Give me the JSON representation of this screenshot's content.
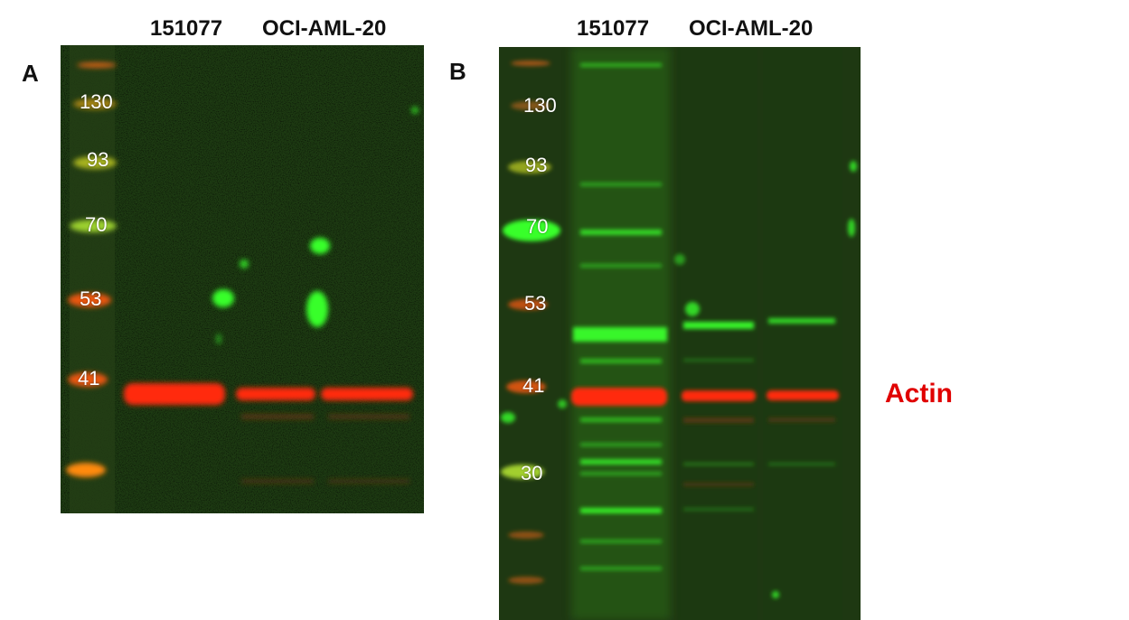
{
  "panel_a": {
    "letter": "A",
    "lanes": {
      "lane1": "151077",
      "lane2": "OCI-AML-20"
    },
    "markers": [
      "130",
      "93",
      "70",
      "53",
      "41"
    ]
  },
  "panel_b": {
    "letter": "B",
    "lanes": {
      "lane1": "151077",
      "lane2": "OCI-AML-20"
    },
    "markers": [
      "130",
      "93",
      "70",
      "53",
      "41",
      "30"
    ]
  },
  "protein_label": {
    "text": "Actin",
    "color": "#e00000"
  },
  "colors": {
    "membrane": "#1b3f12",
    "actin_band": "#ff2a10",
    "green_signal": "#39ff2a",
    "marker_orange": "#ff6a1a"
  }
}
